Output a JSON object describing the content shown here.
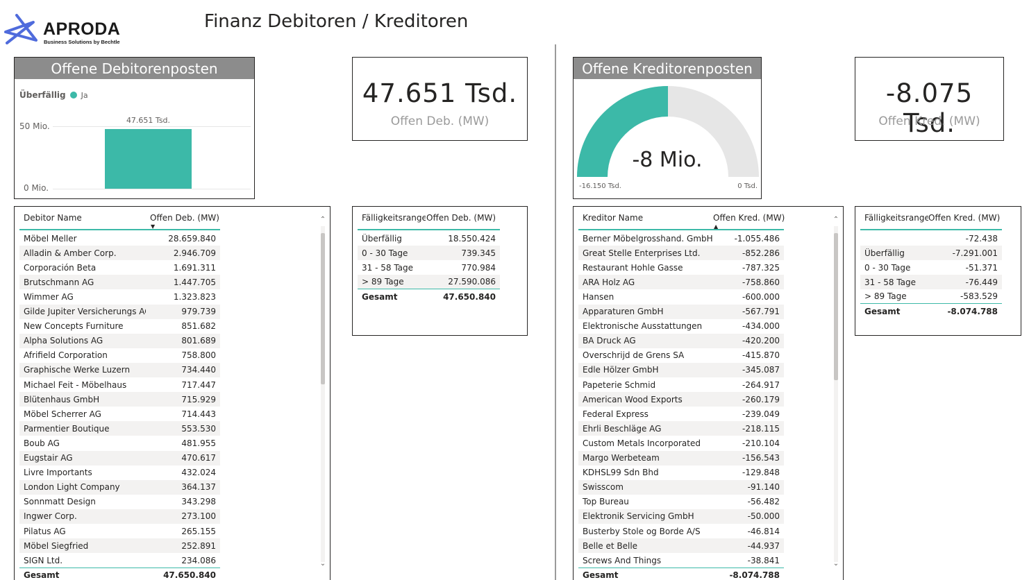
{
  "logo": {
    "name": "APRODA",
    "tagline": "Business Solutions by Bechtle",
    "brand_color": "#4f6bdc"
  },
  "page": {
    "title": "Finanz Debitoren / Kreditoren"
  },
  "colors": {
    "accent": "#3cb9a8",
    "header_bg": "#8c8c8c",
    "gauge_bg": "#e6e6e6"
  },
  "deb_chart": {
    "header": "Offene Debitorenposten",
    "legend_title": "Überfällig",
    "legend_item": "Ja",
    "y_top_label": "50 Mio.",
    "y_zero_label": "0 Mio.",
    "bar_label": "47.651 Tsd."
  },
  "chart_data": {
    "type": "bar",
    "categories": [
      "Ja"
    ],
    "values": [
      47.651
    ],
    "ylim": [
      0,
      50
    ],
    "title": "Offene Debitorenposten",
    "xlabel": "",
    "ylabel": "",
    "data_labels": [
      "47.651 Tsd."
    ],
    "grid": true,
    "legend": "top-left"
  },
  "kpi_deb": {
    "value": "47.651 Tsd.",
    "label": "Offen Deb. (MW)"
  },
  "kpi_kred": {
    "value": "-8.075 Tsd.",
    "label": "Offen Kred. (MW)"
  },
  "gauge": {
    "header": "Offene Kreditorenposten",
    "value_label": "-8 Mio.",
    "min_label": "-16.150 Tsd.",
    "max_label": "0 Tsd.",
    "value": -8075,
    "min": -16150,
    "max": 0
  },
  "deb_table": {
    "col1": "Debitor Name",
    "col2": "Offen Deb. (MW)",
    "rows": [
      [
        "Möbel Meller",
        "28.659.840"
      ],
      [
        "Alladin & Amber Corp.",
        "2.946.709"
      ],
      [
        "Corporación Beta",
        "1.691.311"
      ],
      [
        "Brutschmann AG",
        "1.447.705"
      ],
      [
        "Wimmer AG",
        "1.323.823"
      ],
      [
        "Gilde Jupiter Versicherungs AG",
        "979.739"
      ],
      [
        "New Concepts Furniture",
        "851.682"
      ],
      [
        "Alpha Solutions AG",
        "801.689"
      ],
      [
        "Afrifield Corporation",
        "758.800"
      ],
      [
        "Graphische Werke Luzern",
        "734.440"
      ],
      [
        "Michael Feit - Möbelhaus",
        "717.447"
      ],
      [
        "Blütenhaus GmbH",
        "715.929"
      ],
      [
        "Möbel Scherrer AG",
        "714.443"
      ],
      [
        "Parmentier Boutique",
        "553.530"
      ],
      [
        "Boub AG",
        "481.955"
      ],
      [
        "Eugstair AG",
        "470.617"
      ],
      [
        "Livre Importants",
        "432.024"
      ],
      [
        "London Light Company",
        "364.137"
      ],
      [
        "Sonnmatt Design",
        "343.298"
      ],
      [
        "Ingwer Corp.",
        "273.100"
      ],
      [
        "Pilatus AG",
        "265.155"
      ],
      [
        "Möbel Siegfried",
        "252.891"
      ],
      [
        "SIGN Ltd.",
        "234.086"
      ]
    ],
    "total_label": "Gesamt",
    "total_value": "47.650.840"
  },
  "deb_range_table": {
    "col1": "Fälligkeitsrange",
    "col2": "Offen Deb. (MW)",
    "rows": [
      [
        "Überfällig",
        "18.550.424"
      ],
      [
        "0 - 30 Tage",
        "739.345"
      ],
      [
        "31 - 58 Tage",
        "770.984"
      ],
      [
        "> 89 Tage",
        "27.590.086"
      ]
    ],
    "total_label": "Gesamt",
    "total_value": "47.650.840"
  },
  "kred_table": {
    "col1": "Kreditor Name",
    "col2": "Offen Kred. (MW)",
    "rows": [
      [
        "Berner Möbelgrosshand. GmbH",
        "-1.055.486"
      ],
      [
        "Great Stelle Enterprises Ltd.",
        "-852.286"
      ],
      [
        "Restaurant Hohle Gasse",
        "-787.325"
      ],
      [
        "ARA Holz AG",
        "-758.860"
      ],
      [
        "Hansen",
        "-600.000"
      ],
      [
        "Apparaturen GmbH",
        "-567.791"
      ],
      [
        "Elektronische Ausstattungen",
        "-434.000"
      ],
      [
        "BA Druck AG",
        "-420.200"
      ],
      [
        "Overschrijd de Grens SA",
        "-415.870"
      ],
      [
        "Edle Hölzer GmbH",
        "-345.087"
      ],
      [
        "Papeterie Schmid",
        "-264.917"
      ],
      [
        "American Wood Exports",
        "-260.179"
      ],
      [
        "Federal Express",
        "-239.049"
      ],
      [
        "Ehrli Beschläge AG",
        "-218.115"
      ],
      [
        "Custom Metals Incorporated",
        "-210.104"
      ],
      [
        "Margo Werbeteam",
        "-156.543"
      ],
      [
        "KDHSL99 Sdn Bhd",
        "-129.848"
      ],
      [
        "Swisscom",
        "-91.140"
      ],
      [
        "Top Bureau",
        "-56.482"
      ],
      [
        "Elektronik Servicing GmbH",
        "-50.000"
      ],
      [
        "Busterby Stole og Borde A/S",
        "-46.814"
      ],
      [
        "Belle et Belle",
        "-44.937"
      ],
      [
        "Screws And Things",
        "-38.841"
      ]
    ],
    "total_label": "Gesamt",
    "total_value": "-8.074.788"
  },
  "kred_range_table": {
    "col1": "Fälligkeitsrange",
    "col2": "Offen Kred. (MW)",
    "rows": [
      [
        "",
        "-72.438"
      ],
      [
        "Überfällig",
        "-7.291.001"
      ],
      [
        "0 - 30 Tage",
        "-51.371"
      ],
      [
        "31 - 58 Tage",
        "-76.449"
      ],
      [
        "> 89 Tage",
        "-583.529"
      ]
    ],
    "total_label": "Gesamt",
    "total_value": "-8.074.788"
  }
}
